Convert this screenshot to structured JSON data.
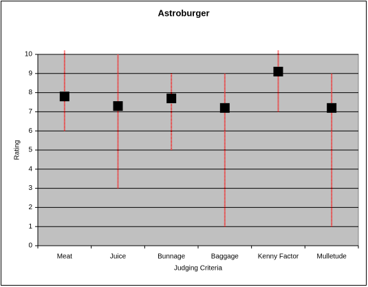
{
  "chart_data": {
    "type": "hilo",
    "title": "Astroburger",
    "x_label": "Judging Criteria",
    "y_label": "Rating",
    "categories": [
      "Meat",
      "Juice",
      "Bunnage",
      "Baggage",
      "Kenny Factor",
      "Mulletude"
    ],
    "values": [
      7.8,
      7.3,
      7.7,
      7.2,
      9.1,
      7.2
    ],
    "low": [
      6,
      3,
      5,
      1,
      7,
      1
    ],
    "high": [
      10.2,
      10,
      9,
      9,
      10.2,
      9
    ],
    "color": "#000000",
    "range_color": "#ff0000",
    "plot_background": "#c0c0c0",
    "ylim": [
      0,
      10
    ],
    "yticks": [
      0,
      1,
      2,
      3,
      4,
      5,
      6,
      7,
      8,
      9,
      10
    ],
    "grid": true
  }
}
